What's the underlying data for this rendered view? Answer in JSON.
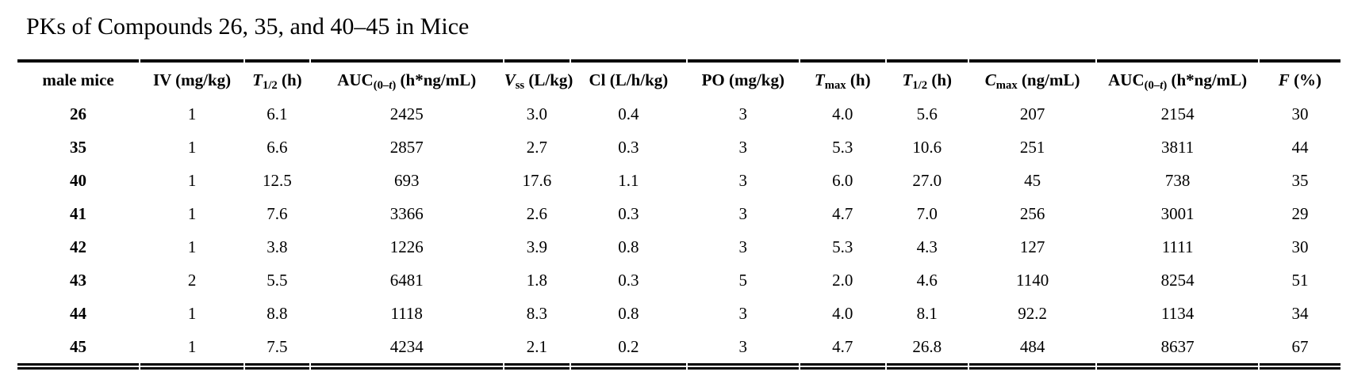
{
  "title": "PKs of Compounds 26, 35, and 40–45 in Mice",
  "colors": {
    "text": "#000000",
    "background": "#ffffff",
    "rule": "#000000"
  },
  "table": {
    "headers": [
      {
        "name": "male-mice",
        "segments": [
          {
            "t": "male mice",
            "s": "b"
          }
        ]
      },
      {
        "name": "iv-dose",
        "segments": [
          {
            "t": "IV (mg/kg)",
            "s": "b"
          }
        ]
      },
      {
        "name": "t-half-iv",
        "segments": [
          {
            "t": "T",
            "s": "bi"
          },
          {
            "t": "1/2",
            "s": "bsub"
          },
          {
            "t": " (h)",
            "s": "b"
          }
        ]
      },
      {
        "name": "auc-iv",
        "segments": [
          {
            "t": "AUC",
            "s": "b"
          },
          {
            "t": "(0–",
            "s": "bsub"
          },
          {
            "t": "t",
            "s": "bsubi"
          },
          {
            "t": ")",
            "s": "bsub"
          },
          {
            "t": " (h*ng/mL)",
            "s": "b"
          }
        ]
      },
      {
        "name": "vss",
        "segments": [
          {
            "t": "V",
            "s": "bi"
          },
          {
            "t": "ss",
            "s": "bsub"
          },
          {
            "t": " (L/kg)",
            "s": "b"
          }
        ]
      },
      {
        "name": "cl",
        "segments": [
          {
            "t": "Cl (L/h/kg)",
            "s": "b"
          }
        ]
      },
      {
        "name": "po-dose",
        "segments": [
          {
            "t": "PO (mg/kg)",
            "s": "b"
          }
        ]
      },
      {
        "name": "tmax",
        "segments": [
          {
            "t": "T",
            "s": "bi"
          },
          {
            "t": "max",
            "s": "bsub"
          },
          {
            "t": " (h)",
            "s": "b"
          }
        ]
      },
      {
        "name": "t-half-po",
        "segments": [
          {
            "t": "T",
            "s": "bi"
          },
          {
            "t": "1/2",
            "s": "bsub"
          },
          {
            "t": " (h)",
            "s": "b"
          }
        ]
      },
      {
        "name": "cmax",
        "segments": [
          {
            "t": "C",
            "s": "bi"
          },
          {
            "t": "max",
            "s": "bsub"
          },
          {
            "t": " (ng/mL)",
            "s": "b"
          }
        ]
      },
      {
        "name": "auc-po",
        "segments": [
          {
            "t": "AUC",
            "s": "b"
          },
          {
            "t": "(0–",
            "s": "bsub"
          },
          {
            "t": "t",
            "s": "bsubi"
          },
          {
            "t": ")",
            "s": "bsub"
          },
          {
            "t": " (h*ng/mL)",
            "s": "b"
          }
        ]
      },
      {
        "name": "f-percent",
        "segments": [
          {
            "t": "F",
            "s": "bi"
          },
          {
            "t": " (%)",
            "s": "b"
          }
        ]
      }
    ],
    "rows": [
      {
        "compound": "26",
        "cells": [
          "1",
          "6.1",
          "2425",
          "3.0",
          "0.4",
          "3",
          "4.0",
          "5.6",
          "207",
          "2154",
          "30"
        ]
      },
      {
        "compound": "35",
        "cells": [
          "1",
          "6.6",
          "2857",
          "2.7",
          "0.3",
          "3",
          "5.3",
          "10.6",
          "251",
          "3811",
          "44"
        ]
      },
      {
        "compound": "40",
        "cells": [
          "1",
          "12.5",
          "693",
          "17.6",
          "1.1",
          "3",
          "6.0",
          "27.0",
          "45",
          "738",
          "35"
        ]
      },
      {
        "compound": "41",
        "cells": [
          "1",
          "7.6",
          "3366",
          "2.6",
          "0.3",
          "3",
          "4.7",
          "7.0",
          "256",
          "3001",
          "29"
        ]
      },
      {
        "compound": "42",
        "cells": [
          "1",
          "3.8",
          "1226",
          "3.9",
          "0.8",
          "3",
          "5.3",
          "4.3",
          "127",
          "1111",
          "30"
        ]
      },
      {
        "compound": "43",
        "cells": [
          "2",
          "5.5",
          "6481",
          "1.8",
          "0.3",
          "5",
          "2.0",
          "4.6",
          "1140",
          "8254",
          "51"
        ]
      },
      {
        "compound": "44",
        "cells": [
          "1",
          "8.8",
          "1118",
          "8.3",
          "0.8",
          "3",
          "4.0",
          "8.1",
          "92.2",
          "1134",
          "34"
        ]
      },
      {
        "compound": "45",
        "cells": [
          "1",
          "7.5",
          "4234",
          "2.1",
          "0.2",
          "3",
          "4.7",
          "26.8",
          "484",
          "8637",
          "67"
        ]
      }
    ]
  }
}
